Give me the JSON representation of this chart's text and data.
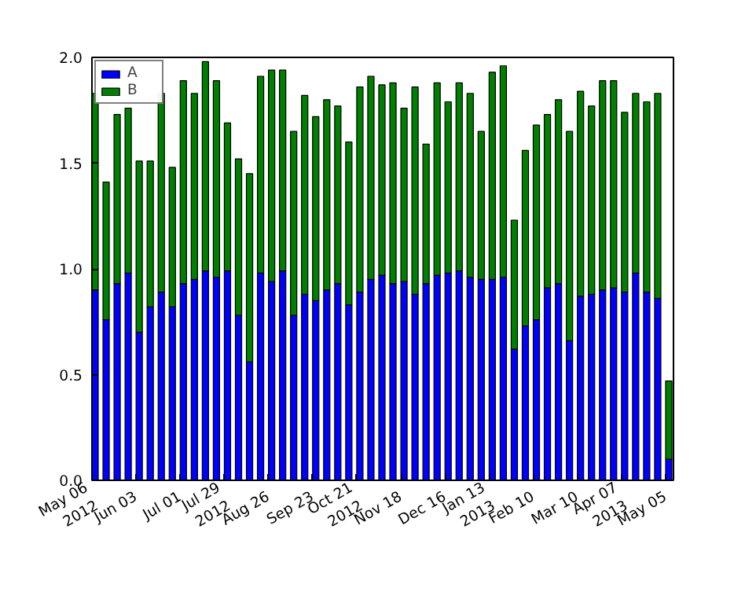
{
  "chart_data": {
    "type": "bar",
    "stacked": true,
    "x": [
      "2012-05-06",
      "2012-05-13",
      "2012-05-20",
      "2012-05-27",
      "2012-06-03",
      "2012-06-10",
      "2012-06-17",
      "2012-06-24",
      "2012-07-01",
      "2012-07-08",
      "2012-07-15",
      "2012-07-22",
      "2012-07-29",
      "2012-08-05",
      "2012-08-12",
      "2012-08-19",
      "2012-08-26",
      "2012-09-02",
      "2012-09-09",
      "2012-09-16",
      "2012-09-23",
      "2012-09-30",
      "2012-10-07",
      "2012-10-14",
      "2012-10-21",
      "2012-10-28",
      "2012-11-04",
      "2012-11-11",
      "2012-11-18",
      "2012-11-25",
      "2012-12-02",
      "2012-12-09",
      "2012-12-16",
      "2012-12-23",
      "2012-12-30",
      "2013-01-06",
      "2013-01-13",
      "2013-01-20",
      "2013-01-27",
      "2013-02-03",
      "2013-02-10",
      "2013-02-17",
      "2013-02-24",
      "2013-03-03",
      "2013-03-10",
      "2013-03-17",
      "2013-03-24",
      "2013-03-31",
      "2013-04-07",
      "2013-04-14",
      "2013-04-21",
      "2013-04-28",
      "2013-05-05"
    ],
    "series": [
      {
        "name": "A",
        "color": "#0000ff",
        "values": [
          0.9,
          0.76,
          0.93,
          0.98,
          0.7,
          0.82,
          0.89,
          0.82,
          0.93,
          0.95,
          0.99,
          0.96,
          0.99,
          0.78,
          0.56,
          0.98,
          0.94,
          0.99,
          0.78,
          0.88,
          0.85,
          0.9,
          0.93,
          0.83,
          0.89,
          0.95,
          0.97,
          0.93,
          0.94,
          0.88,
          0.93,
          0.97,
          0.98,
          0.99,
          0.96,
          0.95,
          0.95,
          0.96,
          0.62,
          0.73,
          0.76,
          0.91,
          0.93,
          0.66,
          0.87,
          0.88,
          0.9,
          0.91,
          0.89,
          0.98,
          0.89,
          0.86,
          0.1
        ]
      },
      {
        "name": "B",
        "color": "#008000",
        "values": [
          0.93,
          0.65,
          0.8,
          0.78,
          0.81,
          0.69,
          0.94,
          0.66,
          0.96,
          0.88,
          0.99,
          0.93,
          0.7,
          0.74,
          0.89,
          0.93,
          1.0,
          0.95,
          0.87,
          0.94,
          0.87,
          0.9,
          0.84,
          0.77,
          0.97,
          0.96,
          0.9,
          0.95,
          0.82,
          0.98,
          0.66,
          0.91,
          0.81,
          0.89,
          0.87,
          0.7,
          0.98,
          1.0,
          0.61,
          0.83,
          0.92,
          0.82,
          0.87,
          0.99,
          0.97,
          0.89,
          0.99,
          0.98,
          0.85,
          0.85,
          0.9,
          0.97,
          0.37
        ]
      }
    ],
    "xlim": [
      "2012-05-06",
      "2013-05-10"
    ],
    "xticks": [
      {
        "value": "2012-05-06",
        "label": "May 06\n2012"
      },
      {
        "value": "2012-06-03",
        "label": "Jun 03"
      },
      {
        "value": "2012-07-01",
        "label": "Jul 01"
      },
      {
        "value": "2012-07-29",
        "label": "Jul 29\n2012"
      },
      {
        "value": "2012-08-26",
        "label": "Aug 26"
      },
      {
        "value": "2012-09-23",
        "label": "Sep 23"
      },
      {
        "value": "2012-10-21",
        "label": "Oct 21\n2012"
      },
      {
        "value": "2012-11-18",
        "label": "Nov 18"
      },
      {
        "value": "2012-12-16",
        "label": "Dec 16"
      },
      {
        "value": "2013-01-13",
        "label": "Jan 13\n2013"
      },
      {
        "value": "2013-02-10",
        "label": "Feb 10"
      },
      {
        "value": "2013-03-10",
        "label": "Mar 10"
      },
      {
        "value": "2013-04-07",
        "label": "Apr 07\n2013"
      },
      {
        "value": "2013-05-05",
        "label": "May 05"
      }
    ],
    "ylim": [
      0,
      2
    ],
    "yticks": [
      {
        "value": 0,
        "label": "0.0"
      },
      {
        "value": 0.5,
        "label": "0.5"
      },
      {
        "value": 1,
        "label": "1.0"
      },
      {
        "value": 1.5,
        "label": "1.5"
      },
      {
        "value": 2,
        "label": "2.0"
      }
    ],
    "grid": false,
    "legend": "top left"
  }
}
